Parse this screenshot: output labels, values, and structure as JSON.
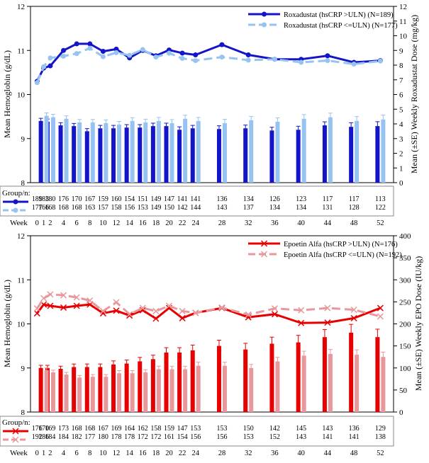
{
  "chart_data": [
    {
      "type": "line+bar",
      "ylabel_left": "Mean Hemoglobin (g/dL)",
      "ylabel_right": "Mean (±SE) Weekly Roxadustat Dose (mg/kg)",
      "ylim_left": [
        8,
        12
      ],
      "ylim_right": [
        0,
        12
      ],
      "yticks_left": [
        "8",
        "9",
        "10",
        "11",
        "12"
      ],
      "yticks_right": [
        "0",
        "1",
        "2",
        "3",
        "4",
        "5",
        "6",
        "7",
        "8",
        "9",
        "10",
        "11",
        "12"
      ],
      "week_label": "Week",
      "x": [
        0,
        1,
        2,
        4,
        6,
        8,
        10,
        12,
        14,
        16,
        18,
        20,
        22,
        24,
        28,
        32,
        36,
        40,
        44,
        48,
        52
      ],
      "x_labels": [
        "0",
        "1",
        "2",
        "4",
        "6",
        "8",
        "10",
        "12",
        "14",
        "16",
        "18",
        "20",
        "22",
        "24",
        "28",
        "32",
        "36",
        "40",
        "44",
        "48",
        "52"
      ],
      "legend_position": "top-right",
      "series": [
        {
          "name": "Roxadustat (hsCRP >ULN) (N=189)",
          "color": "#1414c8",
          "style": "solid",
          "marker": "circle",
          "hb": [
            10.3,
            10.6,
            10.65,
            11.0,
            11.15,
            11.15,
            10.98,
            11.03,
            10.83,
            11.0,
            10.88,
            11.01,
            10.94,
            10.9,
            11.13,
            10.9,
            10.8,
            10.8,
            10.88,
            10.73,
            10.77
          ],
          "dose": [
            null,
            4.2,
            4.15,
            3.9,
            3.85,
            3.5,
            3.7,
            3.7,
            3.75,
            3.75,
            3.85,
            3.85,
            3.6,
            3.7,
            3.65,
            3.7,
            3.55,
            3.6,
            3.9,
            3.8,
            3.85
          ],
          "dose_se": [
            null,
            0.18,
            0.18,
            0.18,
            0.18,
            0.18,
            0.2,
            0.2,
            0.2,
            0.2,
            0.2,
            0.2,
            0.2,
            0.2,
            0.22,
            0.22,
            0.22,
            0.24,
            0.24,
            0.28,
            0.3
          ],
          "n": [
            "189",
            "183",
            "180",
            "176",
            "170",
            "167",
            "159",
            "160",
            "154",
            "151",
            "149",
            "147",
            "141",
            "141",
            "136",
            "134",
            "126",
            "123",
            "117",
            "117",
            "113"
          ]
        },
        {
          "name": "Roxadustat (hsCRP <=ULN) (N=177)",
          "color": "#96c3f0",
          "style": "dashed",
          "marker": "circle",
          "hb": [
            10.27,
            10.63,
            10.83,
            10.87,
            10.93,
            11.05,
            10.86,
            10.95,
            10.89,
            11.02,
            10.85,
            10.94,
            10.82,
            10.77,
            10.85,
            10.78,
            10.8,
            10.73,
            10.77,
            10.69,
            10.76
          ],
          "dose": [
            null,
            4.55,
            4.45,
            4.35,
            4.1,
            4.1,
            4.05,
            3.95,
            4.2,
            4.1,
            4.2,
            4.05,
            4.35,
            4.2,
            4.05,
            4.25,
            4.15,
            4.35,
            4.45,
            4.2,
            4.3
          ],
          "dose_se": [
            null,
            0.2,
            0.2,
            0.2,
            0.2,
            0.2,
            0.22,
            0.22,
            0.22,
            0.22,
            0.24,
            0.24,
            0.24,
            0.24,
            0.26,
            0.26,
            0.26,
            0.28,
            0.28,
            0.3,
            0.3
          ],
          "n": [
            "177",
            "166",
            "168",
            "168",
            "168",
            "163",
            "157",
            "158",
            "156",
            "153",
            "149",
            "150",
            "142",
            "144",
            "143",
            "137",
            "134",
            "134",
            "131",
            "128",
            "122"
          ]
        }
      ],
      "group_label": "Group/n:"
    },
    {
      "type": "line+bar",
      "ylabel_left": "Mean Hemoglobin (g/dL)",
      "ylabel_right": "Mean (±SE) Weekly EPO Dose (IU/kg)",
      "ylim_left": [
        8,
        12
      ],
      "ylim_right": [
        0,
        400
      ],
      "yticks_left": [
        "8",
        "9",
        "10",
        "11",
        "12"
      ],
      "yticks_right": [
        "0",
        "50",
        "100",
        "150",
        "200",
        "250",
        "300",
        "350",
        "400"
      ],
      "week_label": "Week",
      "x": [
        0,
        1,
        2,
        4,
        6,
        8,
        10,
        12,
        14,
        16,
        18,
        20,
        22,
        24,
        28,
        32,
        36,
        40,
        44,
        48,
        52
      ],
      "x_labels": [
        "0",
        "1",
        "2",
        "4",
        "6",
        "8",
        "10",
        "12",
        "14",
        "16",
        "18",
        "20",
        "22",
        "24",
        "28",
        "32",
        "36",
        "40",
        "44",
        "48",
        "52"
      ],
      "legend_position": "top-right",
      "series": [
        {
          "name": "Epoetin Alfa (hsCRP >ULN) (N=176)",
          "color": "#e60000",
          "style": "solid",
          "marker": "x",
          "hb": [
            10.24,
            10.44,
            10.41,
            10.37,
            10.41,
            10.44,
            10.24,
            10.3,
            10.19,
            10.31,
            10.12,
            10.36,
            10.13,
            10.25,
            10.36,
            10.15,
            10.22,
            10.02,
            10.03,
            10.13,
            10.36
          ],
          "dose": [
            null,
            100,
            100,
            98,
            102,
            102,
            102,
            108,
            110,
            115,
            120,
            135,
            135,
            140,
            150,
            142,
            155,
            158,
            170,
            180,
            170
          ],
          "dose_se": [
            null,
            6,
            6,
            6,
            7,
            7,
            7,
            8,
            8,
            9,
            9,
            11,
            11,
            12,
            13,
            14,
            15,
            16,
            17,
            19,
            18
          ],
          "n": [
            "176",
            "170",
            "169",
            "173",
            "168",
            "168",
            "167",
            "169",
            "164",
            "162",
            "158",
            "159",
            "147",
            "153",
            "153",
            "150",
            "142",
            "145",
            "143",
            "136",
            "129"
          ]
        },
        {
          "name": "Epoetin Alfa (hsCRP <=ULN) (N=192)",
          "color": "#e8989c",
          "style": "dashed",
          "marker": "x",
          "hb": [
            10.35,
            10.58,
            10.67,
            10.65,
            10.6,
            10.53,
            10.29,
            10.49,
            10.22,
            10.36,
            10.29,
            10.41,
            10.29,
            10.25,
            10.37,
            10.21,
            10.35,
            10.31,
            10.36,
            10.32,
            10.17
          ],
          "dose": [
            null,
            95,
            90,
            85,
            78,
            80,
            80,
            88,
            88,
            90,
            97,
            97,
            97,
            105,
            105,
            100,
            115,
            128,
            132,
            130,
            125
          ],
          "dose_se": [
            null,
            5,
            5,
            5,
            5,
            5,
            5,
            6,
            6,
            6,
            7,
            7,
            7,
            8,
            8,
            8,
            9,
            10,
            10,
            11,
            11
          ],
          "n": [
            "192",
            "186",
            "184",
            "184",
            "182",
            "177",
            "180",
            "178",
            "178",
            "172",
            "172",
            "161",
            "154",
            "156",
            "156",
            "153",
            "152",
            "143",
            "141",
            "141",
            "138"
          ]
        }
      ],
      "group_label": "Group/n:"
    }
  ]
}
